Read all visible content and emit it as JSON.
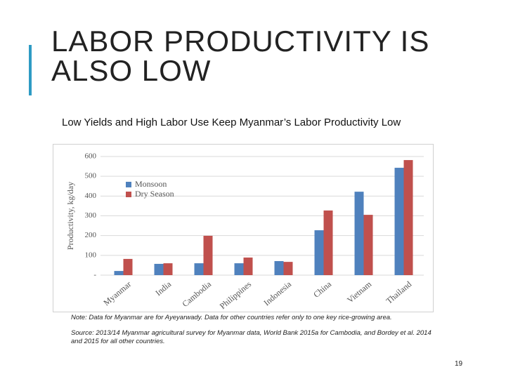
{
  "slide": {
    "title": "LABOR PRODUCTIVITY IS ALSO LOW",
    "page_number": "19"
  },
  "notes": {
    "note": "Note: Data for Myanmar are for Ayeyarwady. Data for other countries refer only to one key rice-growing area.",
    "source": "Source: 2013/14 Myanmar agricultural survey for Myanmar data, World Bank 2015a for Cambodia, and Bordey et al. 2014 and 2015 for all other countries."
  },
  "chart_data": {
    "type": "bar",
    "title": "Low Yields and High Labor Use Keep Myanmar’s Labor Productivity Low",
    "y_label": "Productivity, kg/day",
    "categories": [
      "Myanmar",
      "India",
      "Cambodia",
      "Philippines",
      "Indonesia",
      "China",
      "Vietnam",
      "Thailand"
    ],
    "series": [
      {
        "name": "Monsoon",
        "color": "#4f81bd",
        "values": [
          21,
          57,
          60,
          60,
          71,
          227,
          422,
          543
        ]
      },
      {
        "name": "Dry Season",
        "color": "#c0504d",
        "values": [
          82,
          60,
          199,
          89,
          67,
          327,
          305,
          582
        ]
      }
    ],
    "ylim": [
      0,
      600
    ],
    "yticks": [
      {
        "value": 0,
        "label": "-"
      },
      100,
      200,
      300,
      400,
      500,
      600
    ],
    "grid": true,
    "legend": "upper left"
  }
}
